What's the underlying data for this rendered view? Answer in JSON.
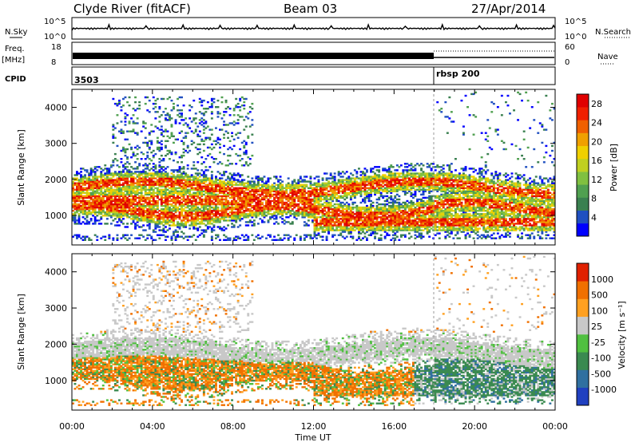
{
  "header": {
    "station": "Clyde River (fitACF)",
    "beam": "Beam 03",
    "date": "27/Apr/2014"
  },
  "sky_panel": {
    "left_label": "N.Sky",
    "right_label": "N.Search",
    "left_ticks": [
      "10^5",
      "10^0"
    ],
    "right_ticks": [
      "10^5",
      "10^0"
    ]
  },
  "freq_panel": {
    "left_label_1": "Freq.",
    "left_label_2": "[MHz]",
    "right_label": "Nave",
    "left_ticks": [
      "18",
      "8"
    ],
    "right_ticks": [
      "60",
      "0"
    ]
  },
  "cpid_panel": {
    "label": "CPID",
    "segments": [
      {
        "name": "3503",
        "start_hour": 0
      },
      {
        "name": "rbsp 200",
        "start_hour": 18
      }
    ]
  },
  "chart_data": [
    {
      "type": "heatmap",
      "quantity": "Power",
      "ylabel": "Slant Range [km]",
      "yticks": [
        "1000",
        "2000",
        "3000",
        "4000"
      ],
      "ylim": [
        180,
        4500
      ],
      "xlim": [
        0,
        24
      ],
      "colorbar_label": "Power [dB]",
      "colorbar_ticks": [
        "4",
        "8",
        "12",
        "16",
        "20",
        "24",
        "28"
      ],
      "colorbar_range": [
        0,
        30
      ],
      "colors": [
        "#0000ff",
        "#2050c0",
        "#3a8050",
        "#50a050",
        "#80c040",
        "#c0d020",
        "#f0d000",
        "#f0a000",
        "#f06000",
        "#f02000",
        "#e00000"
      ]
    },
    {
      "type": "heatmap",
      "quantity": "Velocity",
      "ylabel": "Slant Range [km]",
      "yticks": [
        "1000",
        "2000",
        "3000",
        "4000"
      ],
      "ylim": [
        180,
        4500
      ],
      "xlim": [
        0,
        24
      ],
      "colorbar_label": "Velocity [m s⁻¹]",
      "colorbar_ticks": [
        "1000",
        "500",
        "100",
        "25",
        "-25",
        "-100",
        "-500",
        "-1000"
      ],
      "colors": [
        "#2040c0",
        "#3070a0",
        "#3a8a50",
        "#50c040",
        "#c8c8c8",
        "#ffa020",
        "#f07000",
        "#e02000"
      ]
    }
  ],
  "xaxis": {
    "ticks": [
      "00:00",
      "04:00",
      "08:00",
      "12:00",
      "16:00",
      "20:00",
      "00:00"
    ],
    "label": "Time UT"
  }
}
